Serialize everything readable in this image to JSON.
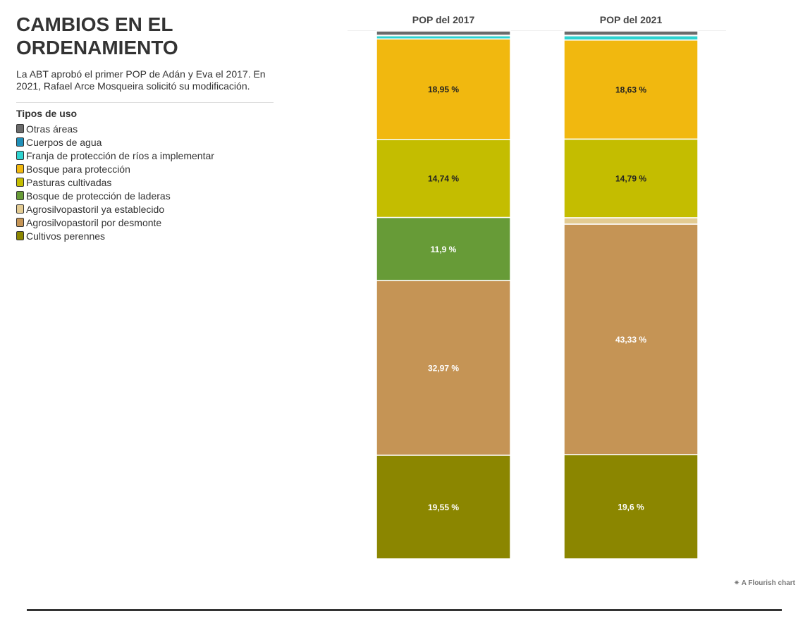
{
  "header": {
    "title": "CAMBIOS EN EL ORDENAMIENTO",
    "subtitle": "La ABT aprobó el primer POP de Adán y Eva el 2017. En 2021, Rafael Arce Mosqueira solicitó su modificación."
  },
  "legend": {
    "title": "Tipos de uso",
    "items": [
      {
        "label": "Otras áreas",
        "color": "#6b6b6b"
      },
      {
        "label": "Cuerpos de agua",
        "color": "#1f8fb8"
      },
      {
        "label": "Franja de protección de ríos a implementar",
        "color": "#2ed3d0"
      },
      {
        "label": "Bosque para protección",
        "color": "#f1b80f"
      },
      {
        "label": "Pasturas cultivadas",
        "color": "#c4bd00"
      },
      {
        "label": "Bosque de protección de laderas",
        "color": "#679b37"
      },
      {
        "label": "Agrosilvopastoril ya establecido",
        "color": "#e3cb92"
      },
      {
        "label": "Agrosilvopastoril por desmonte",
        "color": "#c59455"
      },
      {
        "label": "Cultivos perennes",
        "color": "#8b8600"
      }
    ]
  },
  "chart_data": {
    "type": "bar",
    "stacked": true,
    "normalized_percent": true,
    "categories": [
      "POP del 2017",
      "POP del 2021"
    ],
    "series": [
      {
        "name": "Otras áreas",
        "color": "#6b6b6b",
        "values": [
          0.8,
          0.8
        ],
        "labels": [
          "",
          ""
        ]
      },
      {
        "name": "Cuerpos de agua",
        "color": "#1f8fb8",
        "values": [
          0.1,
          0.1
        ],
        "labels": [
          "",
          ""
        ]
      },
      {
        "name": "Franja de protección de ríos a implementar",
        "color": "#2ed3d0",
        "values": [
          0.6,
          0.8
        ],
        "labels": [
          "",
          ""
        ]
      },
      {
        "name": "Bosque para protección",
        "color": "#f1b80f",
        "values": [
          18.95,
          18.63
        ],
        "labels": [
          "18,95 %",
          "18,63 %"
        ],
        "label_color": "#222222"
      },
      {
        "name": "Pasturas cultivadas",
        "color": "#c4bd00",
        "values": [
          14.74,
          14.79
        ],
        "labels": [
          "14,74 %",
          "14,79 %"
        ],
        "label_color": "#222222"
      },
      {
        "name": "Bosque de protección de laderas",
        "color": "#679b37",
        "values": [
          11.9,
          0
        ],
        "labels": [
          "11,9 %",
          ""
        ],
        "label_color": "#ffffff"
      },
      {
        "name": "Agrosilvopastoril ya establecido",
        "color": "#e3cb92",
        "values": [
          0,
          1.2
        ],
        "labels": [
          "",
          ""
        ]
      },
      {
        "name": "Agrosilvopastoril por desmonte",
        "color": "#c59455",
        "values": [
          32.97,
          43.33
        ],
        "labels": [
          "32,97 %",
          "43,33 %"
        ],
        "label_color": "#ffffff"
      },
      {
        "name": "Cultivos perennes",
        "color": "#8b8600",
        "values": [
          19.55,
          19.6
        ],
        "labels": [
          "19,55 %",
          "19,6 %"
        ],
        "label_color": "#ffffff"
      }
    ]
  },
  "footer": {
    "credit": "A Flourish chart"
  }
}
